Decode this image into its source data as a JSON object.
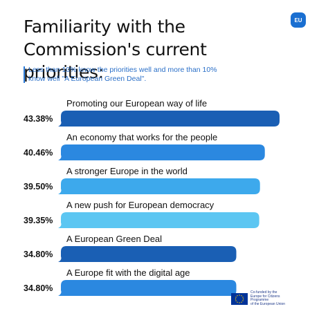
{
  "header": {
    "title_line1": "Familiarity with the",
    "title_line2": "Commission's current priorities:",
    "badge": "EU",
    "subtitle_line1": "Less than 10% know the priorities well and more than 10%",
    "subtitle_line2": "know well \"A European Green Deal\"."
  },
  "footer": {
    "line1": "Co-funded by the",
    "line2": "Europe for Citizens Programme",
    "line3": "of the European Union"
  },
  "chart_data": {
    "type": "bar",
    "orientation": "horizontal",
    "title": "Familiarity with the Commission's current priorities:",
    "subtitle": "Less than 10% know the priorities well and more than 10% know well \"A European Green Deal\".",
    "unit": "%",
    "categories": [
      "Promoting our European way of life",
      "An economy that works for the people",
      "A stronger Europe in the world",
      "A new push for European democracy",
      "A European Green Deal",
      "A Europe fit with the digital age"
    ],
    "values": [
      43.38,
      40.46,
      39.5,
      39.35,
      34.8,
      34.8
    ],
    "value_labels": [
      "43.38%",
      "40.46%",
      "39.50%",
      "39.35%",
      "34.80%",
      "34.80%"
    ],
    "colors": [
      "#1a5fb4",
      "#2b88e0",
      "#3da9ec",
      "#5cc6f2",
      "#1a5fb4",
      "#2b88e0"
    ],
    "xlim": [
      0,
      45
    ],
    "grid": false,
    "legend": "none"
  }
}
